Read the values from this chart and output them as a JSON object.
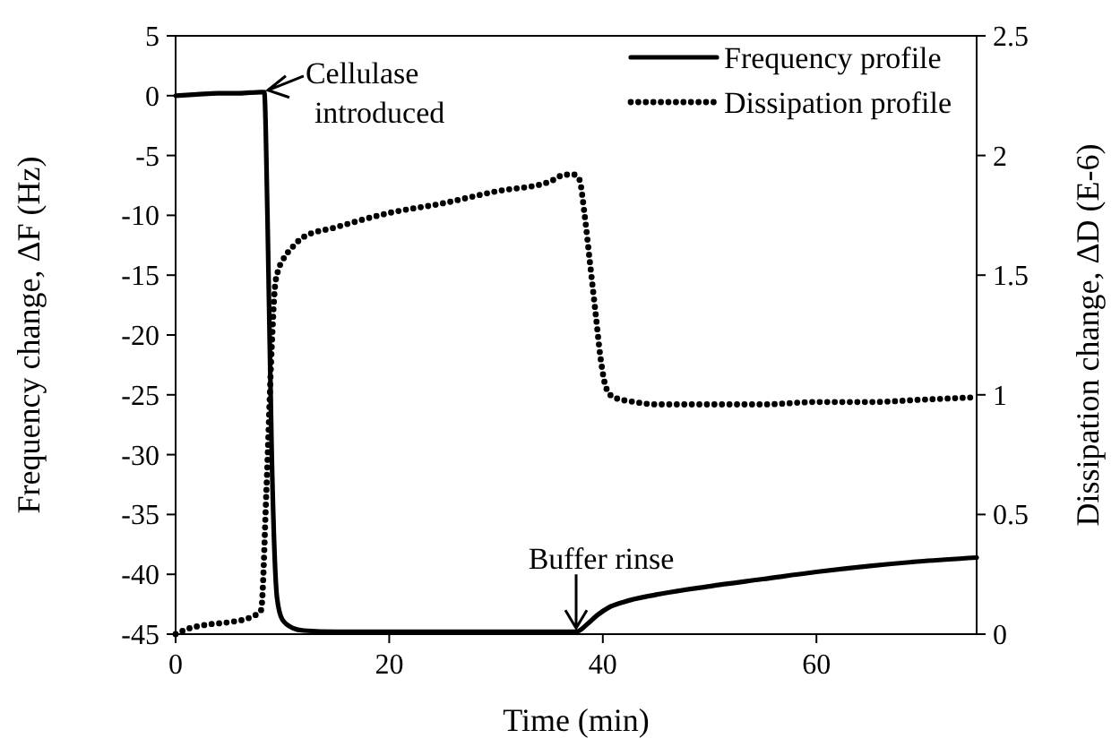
{
  "chart_data": {
    "type": "line",
    "xlabel": "Time (min)",
    "ylabel": "Frequency change, ΔF (Hz)",
    "y2label": "Dissipation change, ΔD (E-6)",
    "xlim": [
      0,
      75
    ],
    "xticks": [
      0,
      20,
      40,
      60
    ],
    "ylim": [
      -45,
      5
    ],
    "yticks": [
      -45,
      -40,
      -35,
      -30,
      -25,
      -20,
      -15,
      -10,
      -5,
      0,
      5
    ],
    "y2lim": [
      0,
      2.5
    ],
    "y2ticks": [
      0,
      0.5,
      1,
      1.5,
      2,
      2.5
    ],
    "grid": false,
    "legend": "top right",
    "series": [
      {
        "name": "Frequency profile",
        "color": "#000000",
        "line_style": "solid",
        "x": [
          0,
          2,
          4,
          6,
          8,
          8.3,
          8.6,
          9,
          9.5,
          10,
          11,
          12,
          15,
          20,
          30,
          36,
          37.5,
          38.5,
          39.5,
          40.5,
          42,
          45,
          50,
          55,
          60,
          65,
          70,
          75
        ],
        "values": [
          0,
          0.1,
          0.2,
          0.2,
          0.3,
          0.3,
          -10,
          -30,
          -42,
          -43.8,
          -44.5,
          -44.7,
          -44.8,
          -44.8,
          -44.8,
          -44.8,
          -44.8,
          -44.2,
          -43.4,
          -42.8,
          -42.3,
          -41.7,
          -41,
          -40.4,
          -39.8,
          -39.3,
          -38.9,
          -38.6
        ]
      },
      {
        "name": "Dissipation profile",
        "color": "#000000",
        "line_style": "dotted",
        "axis": "y2",
        "x": [
          0,
          1,
          3,
          5,
          7,
          8,
          8.5,
          9,
          9.3,
          9.6,
          10,
          11,
          12,
          15,
          20,
          25,
          30,
          35,
          36.5,
          37.3,
          37.8,
          38.3,
          38.8,
          39.3,
          39.8,
          40.3,
          41,
          43,
          45,
          50,
          55,
          60,
          65,
          70,
          75
        ],
        "values": [
          0,
          0.02,
          0.04,
          0.05,
          0.07,
          0.1,
          0.6,
          1.2,
          1.45,
          1.52,
          1.56,
          1.62,
          1.66,
          1.7,
          1.76,
          1.8,
          1.85,
          1.89,
          1.92,
          1.92,
          1.9,
          1.75,
          1.55,
          1.35,
          1.15,
          1.03,
          0.99,
          0.97,
          0.96,
          0.96,
          0.96,
          0.97,
          0.97,
          0.98,
          0.99
        ]
      }
    ],
    "annotations": [
      {
        "text": "Cellulase introduced",
        "x": 8.3,
        "y": 0.3
      },
      {
        "text": "Buffer rinse",
        "x": 37.5,
        "y": -44.8
      }
    ]
  }
}
